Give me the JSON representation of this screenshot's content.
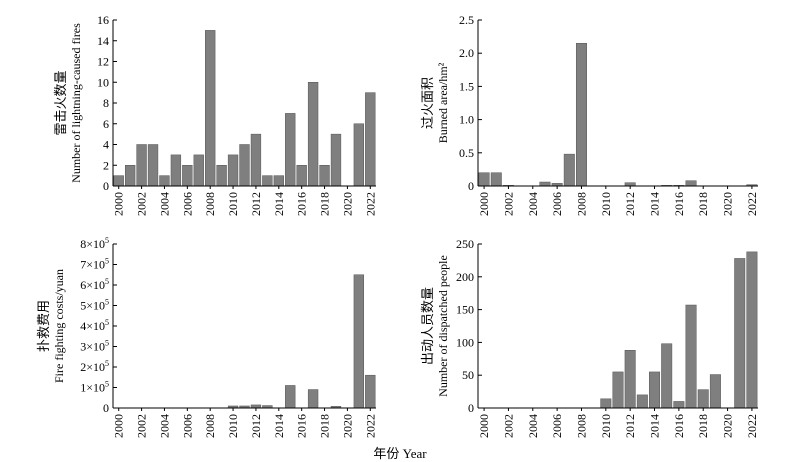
{
  "figure": {
    "x_caption": "年份 Year"
  },
  "chart_data": [
    {
      "type": "bar",
      "ylabel_cn": "雷击火数量",
      "ylabel_en": "Number of lightning-caused fires",
      "categories": [
        "2000",
        "2001",
        "2002",
        "2003",
        "2004",
        "2005",
        "2006",
        "2007",
        "2008",
        "2009",
        "2010",
        "2011",
        "2012",
        "2013",
        "2014",
        "2015",
        "2016",
        "2017",
        "2018",
        "2019",
        "2020",
        "2021",
        "2022"
      ],
      "values": [
        1,
        2,
        4,
        4,
        1,
        3,
        2,
        3,
        15,
        2,
        3,
        4,
        5,
        1,
        1,
        7,
        2,
        10,
        2,
        5,
        0,
        6,
        9
      ],
      "ylim": [
        0,
        16
      ],
      "yticks": [
        "0",
        "2",
        "4",
        "6",
        "8",
        "10",
        "12",
        "14",
        "16"
      ],
      "xtick_labels": [
        "2000",
        "2002",
        "2004",
        "2006",
        "2008",
        "2010",
        "2012",
        "2014",
        "2016",
        "2018",
        "2020",
        "2022"
      ],
      "bar_color": "#7f7f7f",
      "grid": false
    },
    {
      "type": "bar",
      "ylabel_cn": "过火面积",
      "ylabel_en": "Burned area/hm²",
      "categories": [
        "2000",
        "2001",
        "2002",
        "2003",
        "2004",
        "2005",
        "2006",
        "2007",
        "2008",
        "2009",
        "2010",
        "2011",
        "2012",
        "2013",
        "2014",
        "2015",
        "2016",
        "2017",
        "2018",
        "2019",
        "2020",
        "2021",
        "2022"
      ],
      "values": [
        0.2,
        0.2,
        0.01,
        0,
        0,
        0.06,
        0.04,
        0.48,
        2.15,
        0,
        0,
        0,
        0.05,
        0,
        0,
        0.01,
        0.01,
        0.08,
        0,
        0,
        0,
        0,
        0.02
      ],
      "ylim": [
        0,
        2.5
      ],
      "yticks": [
        "0",
        "0.5",
        "1.0",
        "1.5",
        "2.0",
        "2.5"
      ],
      "xtick_labels": [
        "2000",
        "2002",
        "2004",
        "2006",
        "2008",
        "2010",
        "2012",
        "2014",
        "2016",
        "2018",
        "2020",
        "2022"
      ],
      "bar_color": "#7f7f7f",
      "grid": false
    },
    {
      "type": "bar",
      "ylabel_cn": "扑救费用",
      "ylabel_en": "Fire fighting costs/yuan",
      "categories": [
        "2000",
        "2001",
        "2002",
        "2003",
        "2004",
        "2005",
        "2006",
        "2007",
        "2008",
        "2009",
        "2010",
        "2011",
        "2012",
        "2013",
        "2014",
        "2015",
        "2016",
        "2017",
        "2018",
        "2019",
        "2020",
        "2021",
        "2022"
      ],
      "values": [
        0,
        0,
        0,
        0,
        0,
        0,
        0,
        0,
        0,
        0,
        10000,
        10000,
        15000,
        12000,
        0,
        110000,
        0,
        90000,
        0,
        8000,
        0,
        650000,
        160000
      ],
      "ylim": [
        0,
        800000
      ],
      "yticks": [
        {
          "base": "0",
          "exp": ""
        },
        {
          "base": "1×10",
          "exp": "5"
        },
        {
          "base": "2×10",
          "exp": "5"
        },
        {
          "base": "3×10",
          "exp": "5"
        },
        {
          "base": "4×10",
          "exp": "5"
        },
        {
          "base": "5×10",
          "exp": "5"
        },
        {
          "base": "6×10",
          "exp": "5"
        },
        {
          "base": "7×10",
          "exp": "5"
        },
        {
          "base": "8×10",
          "exp": "5"
        }
      ],
      "xtick_labels": [
        "2000",
        "2002",
        "2004",
        "2006",
        "2008",
        "2010",
        "2012",
        "2014",
        "2016",
        "2018",
        "2020",
        "2022"
      ],
      "bar_color": "#7f7f7f",
      "grid": false
    },
    {
      "type": "bar",
      "ylabel_cn": "出动人员数量",
      "ylabel_en": "Number of dispatched people",
      "categories": [
        "2000",
        "2001",
        "2002",
        "2003",
        "2004",
        "2005",
        "2006",
        "2007",
        "2008",
        "2009",
        "2010",
        "2011",
        "2012",
        "2013",
        "2014",
        "2015",
        "2016",
        "2017",
        "2018",
        "2019",
        "2020",
        "2021",
        "2022"
      ],
      "values": [
        0,
        0,
        0,
        0,
        0,
        0,
        0,
        0,
        0,
        0,
        14,
        55,
        88,
        20,
        55,
        98,
        10,
        157,
        28,
        51,
        0,
        228,
        238
      ],
      "ylim": [
        0,
        250
      ],
      "yticks": [
        "0",
        "50",
        "100",
        "150",
        "200",
        "250"
      ],
      "xtick_labels": [
        "2000",
        "2002",
        "2004",
        "2006",
        "2008",
        "2010",
        "2012",
        "2014",
        "2016",
        "2018",
        "2020",
        "2022"
      ],
      "bar_color": "#7f7f7f",
      "grid": false
    }
  ]
}
